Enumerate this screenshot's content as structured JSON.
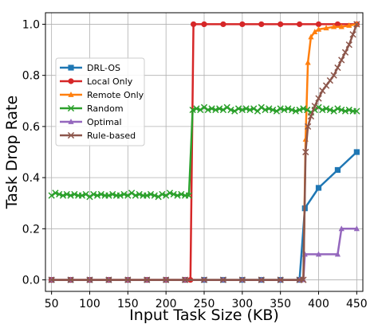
{
  "chart_data": {
    "type": "line",
    "xlabel": "Input Task Size (KB)",
    "ylabel": "Task Drop Rate",
    "xlim": [
      42,
      458
    ],
    "ylim": [
      -0.045,
      1.045
    ],
    "xticks": [
      50,
      100,
      150,
      200,
      250,
      300,
      350,
      400,
      450
    ],
    "yticks": [
      0.0,
      0.2,
      0.4,
      0.6,
      0.8,
      1.0
    ],
    "xtick_labels": [
      "50",
      "100",
      "150",
      "200",
      "250",
      "300",
      "350",
      "400",
      "450"
    ],
    "ytick_labels": [
      "0.0",
      "0.2",
      "0.4",
      "0.6",
      "0.8",
      "1.0"
    ],
    "grid": true,
    "legend_position": "center-left",
    "series": [
      {
        "name": "DRL-OS",
        "color": "#1f77b4",
        "marker": "square",
        "x": [
          50,
          75,
          100,
          125,
          150,
          175,
          200,
          225,
          250,
          275,
          300,
          325,
          350,
          375,
          382,
          400,
          425,
          450
        ],
        "y": [
          0,
          0,
          0,
          0,
          0,
          0,
          0,
          0,
          0,
          0,
          0,
          0,
          0,
          0,
          0.28,
          0.36,
          0.43,
          0.5
        ]
      },
      {
        "name": "Local Only",
        "color": "#d62728",
        "marker": "circle",
        "x": [
          50,
          75,
          100,
          125,
          150,
          175,
          200,
          225,
          232,
          236,
          250,
          275,
          300,
          325,
          350,
          375,
          400,
          425,
          450
        ],
        "y": [
          0,
          0,
          0,
          0,
          0,
          0,
          0,
          0,
          0,
          1.0,
          1.0,
          1.0,
          1.0,
          1.0,
          1.0,
          1.0,
          1.0,
          1.0,
          1.0
        ]
      },
      {
        "name": "Remote Only",
        "color": "#ff7f0e",
        "marker": "triangle-up",
        "x": [
          50,
          75,
          100,
          125,
          150,
          175,
          200,
          225,
          250,
          275,
          300,
          325,
          350,
          375,
          380,
          383,
          386,
          390,
          395,
          400,
          410,
          420,
          430,
          440,
          450
        ],
        "y": [
          0,
          0,
          0,
          0,
          0,
          0,
          0,
          0,
          0,
          0,
          0,
          0,
          0,
          0,
          0,
          0.55,
          0.85,
          0.95,
          0.97,
          0.98,
          0.985,
          0.99,
          0.99,
          0.995,
          1.0
        ]
      },
      {
        "name": "Random",
        "color": "#2ca02c",
        "marker": "x",
        "x": [
          50,
          55,
          60,
          65,
          70,
          75,
          80,
          85,
          90,
          95,
          100,
          105,
          110,
          115,
          120,
          125,
          130,
          135,
          140,
          145,
          150,
          155,
          160,
          165,
          170,
          175,
          180,
          185,
          190,
          195,
          200,
          205,
          210,
          215,
          220,
          225,
          230,
          235,
          240,
          245,
          250,
          255,
          260,
          265,
          270,
          275,
          280,
          285,
          290,
          295,
          300,
          305,
          310,
          315,
          320,
          325,
          330,
          335,
          340,
          345,
          350,
          355,
          360,
          365,
          370,
          375,
          380,
          385,
          390,
          395,
          400,
          405,
          410,
          415,
          420,
          425,
          430,
          435,
          440,
          445,
          450
        ],
        "y": [
          0.33,
          0.34,
          0.335,
          0.33,
          0.335,
          0.33,
          0.335,
          0.33,
          0.33,
          0.335,
          0.325,
          0.335,
          0.33,
          0.335,
          0.33,
          0.33,
          0.335,
          0.33,
          0.33,
          0.335,
          0.33,
          0.34,
          0.33,
          0.335,
          0.33,
          0.33,
          0.335,
          0.33,
          0.325,
          0.335,
          0.33,
          0.34,
          0.335,
          0.33,
          0.335,
          0.33,
          0.33,
          0.665,
          0.67,
          0.665,
          0.675,
          0.665,
          0.67,
          0.665,
          0.67,
          0.665,
          0.675,
          0.665,
          0.66,
          0.67,
          0.665,
          0.67,
          0.665,
          0.67,
          0.66,
          0.675,
          0.665,
          0.67,
          0.665,
          0.66,
          0.67,
          0.665,
          0.67,
          0.665,
          0.66,
          0.665,
          0.67,
          0.665,
          0.655,
          0.665,
          0.675,
          0.665,
          0.67,
          0.665,
          0.66,
          0.67,
          0.665,
          0.66,
          0.665,
          0.66,
          0.66
        ]
      },
      {
        "name": "Optimal",
        "color": "#9467bd",
        "marker": "triangle-up",
        "x": [
          50,
          75,
          100,
          125,
          150,
          175,
          200,
          225,
          250,
          275,
          300,
          325,
          350,
          375,
          380,
          382,
          400,
          425,
          430,
          450
        ],
        "y": [
          0,
          0,
          0,
          0,
          0,
          0,
          0,
          0,
          0,
          0,
          0,
          0,
          0,
          0,
          0,
          0.1,
          0.1,
          0.1,
          0.2,
          0.2
        ]
      },
      {
        "name": "Rule-based",
        "color": "#8c564b",
        "marker": "x",
        "x": [
          50,
          75,
          100,
          125,
          150,
          175,
          200,
          225,
          250,
          275,
          300,
          325,
          350,
          375,
          380,
          383,
          386,
          390,
          395,
          400,
          405,
          410,
          415,
          420,
          425,
          430,
          435,
          440,
          445,
          450
        ],
        "y": [
          0,
          0,
          0,
          0,
          0,
          0,
          0,
          0,
          0,
          0,
          0,
          0,
          0,
          0,
          0,
          0.5,
          0.6,
          0.64,
          0.68,
          0.71,
          0.74,
          0.76,
          0.78,
          0.8,
          0.83,
          0.86,
          0.89,
          0.92,
          0.96,
          1.0
        ]
      }
    ]
  }
}
